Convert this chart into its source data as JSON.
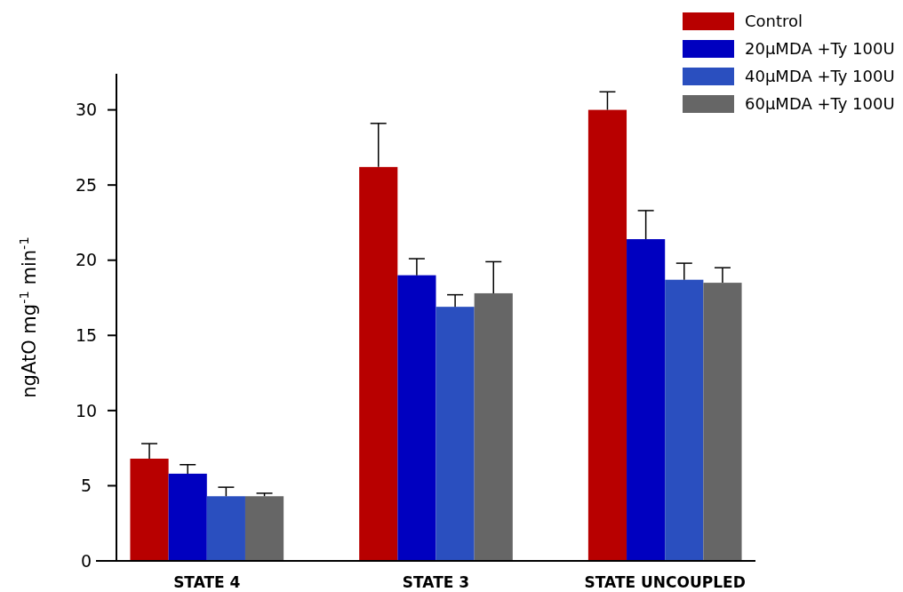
{
  "chart_data": {
    "type": "bar",
    "ylabel": "ngAtO mg$^{-1}$ min$^{-1}$",
    "categories": [
      "STATE 4",
      "STATE 3",
      "STATE UNCOUPLED"
    ],
    "series": [
      {
        "name": "Control",
        "color": "#b80000",
        "values": [
          6.8,
          26.2,
          30.0
        ],
        "errors": [
          1.0,
          2.9,
          1.2
        ]
      },
      {
        "name": "20µMDA +Ty 100U",
        "color": "#0000c0",
        "values": [
          5.8,
          19.0,
          21.4
        ],
        "errors": [
          0.6,
          1.1,
          1.9
        ]
      },
      {
        "name": "40µMDA +Ty 100U",
        "color": "#2a4fbf",
        "values": [
          4.3,
          16.9,
          18.7
        ],
        "errors": [
          0.6,
          0.8,
          1.1
        ]
      },
      {
        "name": "60µMDA +Ty 100U",
        "color": "#666666",
        "values": [
          4.3,
          17.8,
          18.5
        ],
        "errors": [
          0.2,
          2.1,
          1.0
        ]
      }
    ],
    "ylim": [
      0,
      32.4
    ],
    "yticks": [
      0,
      5,
      10,
      15,
      20,
      25,
      30
    ],
    "grid": false,
    "legend": "top right"
  }
}
